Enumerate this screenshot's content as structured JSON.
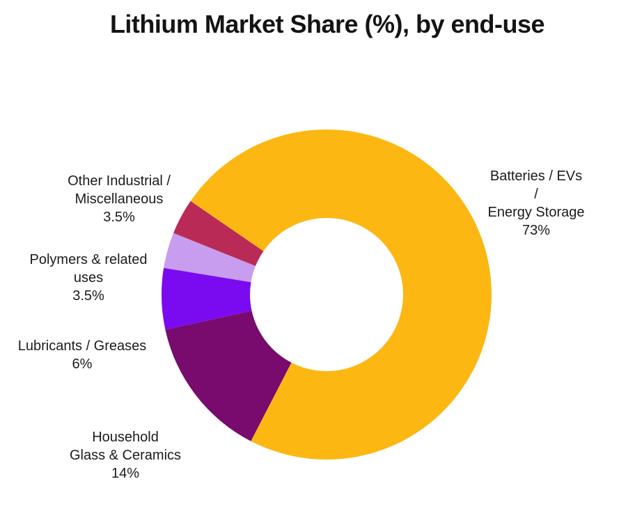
{
  "chart_data": {
    "type": "pie",
    "subtype": "donut",
    "title": "Lithium Market Share (%), by end-use",
    "hole_ratio": 0.464,
    "rotation_deg": -55.5,
    "direction": "clockwise",
    "legend": "none",
    "background_color": "#ffffff",
    "text_color": "#1b1b1b",
    "slices": [
      {
        "label": "Batteries / EVs / Energy Storage",
        "value": 73,
        "percent_text": "73%",
        "color": "#FCB713",
        "label_text": "Batteries / EVs /\nEnergy Storage\n73%"
      },
      {
        "label": "Household Glass & Ceramics",
        "value": 14,
        "percent_text": "14%",
        "color": "#780B6D",
        "label_text": "Household\nGlass & Ceramics\n14%"
      },
      {
        "label": "Lubricants / Greases",
        "value": 6,
        "percent_text": "6%",
        "color": "#7A0BF0",
        "label_text": "Lubricants / Greases\n6%"
      },
      {
        "label": "Polymers & related uses",
        "value": 3.5,
        "percent_text": "3.5%",
        "color": "#C89CEE",
        "label_text": "Polymers & related\nuses\n3.5%"
      },
      {
        "label": "Other Industrial / Miscellaneous",
        "value": 3.5,
        "percent_text": "3.5%",
        "color": "#B92B56",
        "label_text": "Other Industrial /\nMiscellaneous\n3.5%"
      }
    ]
  }
}
